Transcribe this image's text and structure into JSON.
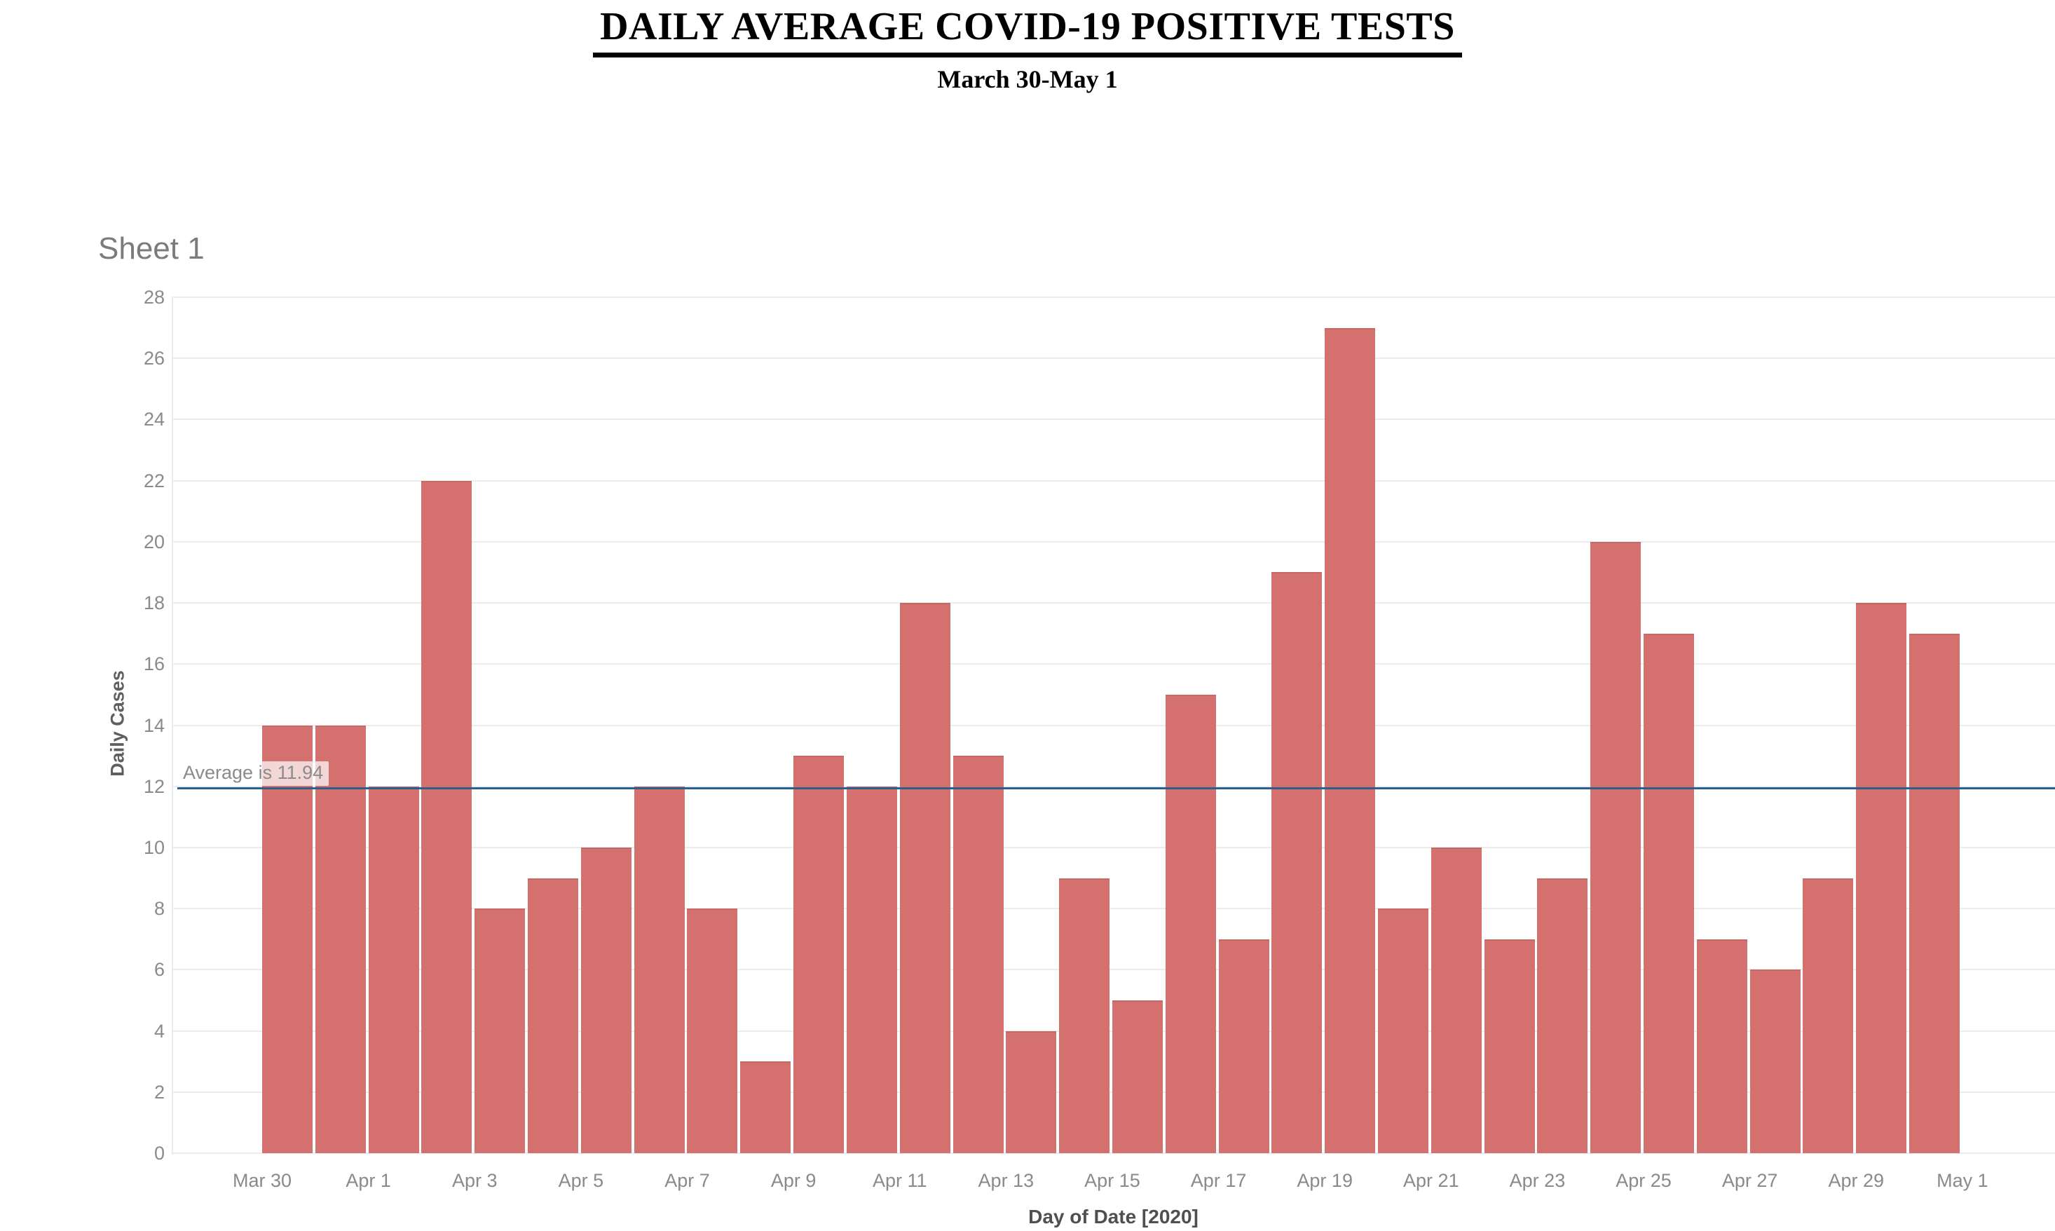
{
  "page": {
    "title": "DAILY AVERAGE COVID-19 POSITIVE TESTS",
    "subtitle": "March 30-May 1"
  },
  "sheet": {
    "label": "Sheet 1"
  },
  "chart_data": {
    "type": "bar",
    "title": "Sheet 1",
    "xlabel": "Day of Date [2020]",
    "ylabel": "Daily Cases",
    "ylim": [
      0,
      28
    ],
    "ytick_step": 2,
    "yticks": [
      0,
      2,
      4,
      6,
      8,
      10,
      12,
      14,
      16,
      18,
      20,
      22,
      24,
      26,
      28
    ],
    "grid": true,
    "legend": "none",
    "bar_color": "#d4716f",
    "categories": [
      "Mar 30",
      "Mar 31",
      "Apr 1",
      "Apr 2",
      "Apr 3",
      "Apr 4",
      "Apr 5",
      "Apr 6",
      "Apr 7",
      "Apr 8",
      "Apr 9",
      "Apr 10",
      "Apr 11",
      "Apr 12",
      "Apr 13",
      "Apr 14",
      "Apr 15",
      "Apr 16",
      "Apr 17",
      "Apr 18",
      "Apr 19",
      "Apr 20",
      "Apr 21",
      "Apr 22",
      "Apr 23",
      "Apr 24",
      "Apr 25",
      "Apr 26",
      "Apr 27",
      "Apr 28",
      "Apr 29",
      "Apr 30"
    ],
    "values": [
      14,
      14,
      12,
      22,
      8,
      9,
      10,
      12,
      8,
      3,
      13,
      12,
      18,
      13,
      4,
      9,
      5,
      15,
      7,
      19,
      27,
      8,
      10,
      7,
      9,
      20,
      17,
      7,
      6,
      9,
      18,
      17
    ],
    "x_tick_labels": [
      "Mar 30",
      "Apr 1",
      "Apr 3",
      "Apr 5",
      "Apr 7",
      "Apr 9",
      "Apr 11",
      "Apr 13",
      "Apr 15",
      "Apr 17",
      "Apr 19",
      "Apr 21",
      "Apr 23",
      "Apr 25",
      "Apr 27",
      "Apr 29",
      "May 1"
    ],
    "reference_line": {
      "value": 11.94,
      "label": "Average is 11.94",
      "color": "#2d5f8a"
    }
  },
  "colors": {
    "bar": "#d4716f",
    "reference_line": "#2d5f8a",
    "grid": "#ececec",
    "axis_text": "#8a8a8a",
    "axis_title_text": "#4f4f4f",
    "annotation_text": "#8b8b8b",
    "sheet_title_text": "#7b7b7b",
    "page_title_text": "#000000",
    "background": "#ffffff"
  }
}
